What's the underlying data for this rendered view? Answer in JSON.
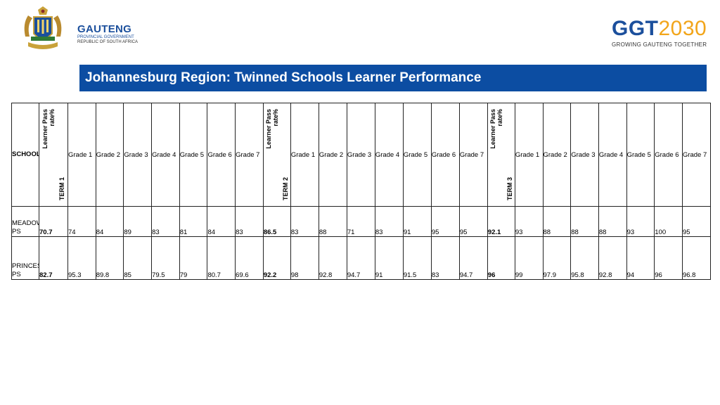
{
  "header": {
    "left_logo": {
      "icon": "coat-of-arms-crest",
      "name": "GAUTENG",
      "line2": "PROVINCIAL GOVERNMENT",
      "line3": "REPUBLIC OF SOUTH AFRICA"
    },
    "right_logo": {
      "main_a": "GGT",
      "main_b": "2030",
      "tagline": "GROWING GAUTENG TOGETHER"
    }
  },
  "title": "Johannesburg Region: Twinned Schools Learner Performance",
  "table": {
    "school_header": "SCHOOL",
    "grade_headers": [
      "Grade 1",
      "Grade 2",
      "Grade 3",
      "Grade 4",
      "Grade 5",
      "Grade 6",
      "Grade 7"
    ],
    "terms": [
      {
        "label": "TERM 1",
        "rate_label_1": "Learner Pass",
        "rate_label_2": "rate%"
      },
      {
        "label": "TERM 2",
        "rate_label_1": "Learner Pass",
        "rate_label_2": "rate%"
      },
      {
        "label": "TERM 3",
        "rate_label_1": "Learner Pass",
        "rate_label_2": "rate%"
      }
    ],
    "rows": [
      {
        "school": "MEADOWLANDS PS",
        "terms": [
          {
            "pass": "70.7",
            "grades": [
              "74",
              "84",
              "89",
              "83",
              "81",
              "84",
              "83"
            ]
          },
          {
            "pass": "86.5",
            "grades": [
              "83",
              "88",
              "71",
              "83",
              "91",
              "95",
              "95"
            ]
          },
          {
            "pass": "92.1",
            "grades": [
              "93",
              "88",
              "88",
              "88",
              "93",
              "100",
              "95"
            ]
          }
        ]
      },
      {
        "school": "PRINCESS PS",
        "terms": [
          {
            "pass": "82.7",
            "grades": [
              "95.3",
              "89.8",
              "85",
              "79.5",
              "79",
              "80.7",
              "69.6"
            ]
          },
          {
            "pass": "92.2",
            "grades": [
              "98",
              "92.8",
              "94.7",
              "91",
              "91.5",
              "83",
              "94.7"
            ]
          },
          {
            "pass": "96",
            "grades": [
              "99",
              "97.9",
              "95.8",
              "92.8",
              "94",
              "96",
              "96.8"
            ]
          }
        ]
      }
    ]
  },
  "colors": {
    "title_bar": "#0c4da2",
    "brand_blue": "#1b4f9c",
    "brand_gold": "#f2a51a"
  }
}
